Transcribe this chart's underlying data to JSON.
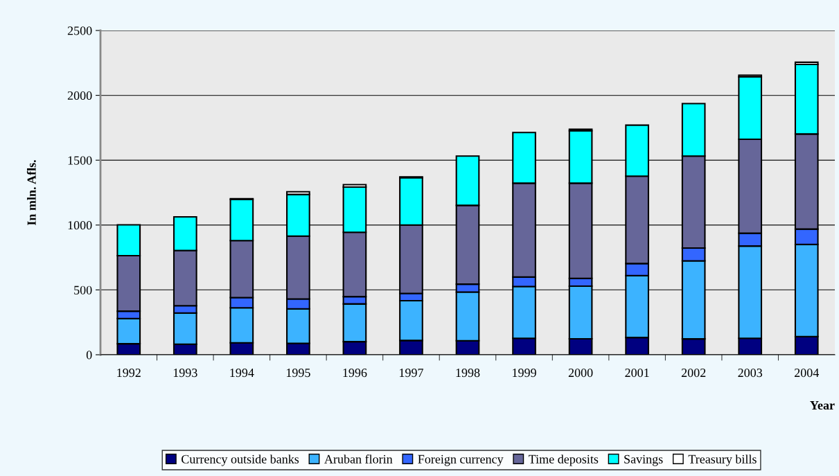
{
  "chart_data": {
    "type": "bar",
    "stacked": true,
    "xlabel": "Year",
    "ylabel": "In mln. Afls.",
    "categories": [
      "1992",
      "1993",
      "1994",
      "1995",
      "1996",
      "1997",
      "1998",
      "1999",
      "2000",
      "2001",
      "2002",
      "2003",
      "2004"
    ],
    "series": [
      {
        "name": "Currency outside banks",
        "color": "#000080",
        "values": [
          85,
          81,
          92,
          88,
          101,
          110,
          108,
          127,
          123,
          133,
          122,
          127,
          140
        ]
      },
      {
        "name": "Aruban florin",
        "color": "#3cb3ff",
        "values": [
          194,
          241,
          270,
          266,
          291,
          307,
          375,
          399,
          406,
          477,
          602,
          711,
          711
        ]
      },
      {
        "name": "Foreign currency",
        "color": "#3366ff",
        "values": [
          57,
          56,
          79,
          76,
          56,
          56,
          61,
          73,
          60,
          93,
          99,
          99,
          118
        ]
      },
      {
        "name": "Time deposits",
        "color": "#666699",
        "values": [
          428,
          426,
          439,
          485,
          496,
          527,
          608,
          724,
          734,
          674,
          709,
          724,
          733
        ]
      },
      {
        "name": "Savings",
        "color": "#00ffff",
        "values": [
          238,
          259,
          318,
          321,
          349,
          365,
          380,
          390,
          404,
          393,
          404,
          481,
          536
        ]
      },
      {
        "name": "Treasury bills",
        "color": "#ffffff",
        "values": [
          0,
          0,
          5,
          21,
          18,
          6,
          0,
          0,
          11,
          0,
          0,
          13,
          17
        ]
      }
    ],
    "ylim": [
      0,
      2500
    ],
    "yticks": [
      0,
      500,
      1000,
      1500,
      2000,
      2500
    ],
    "grid": "y",
    "legend": "bottom"
  }
}
